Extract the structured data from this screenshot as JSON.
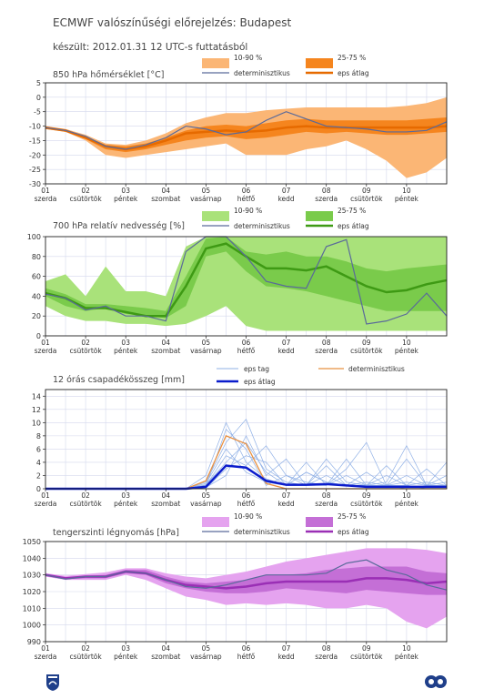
{
  "header": {
    "title": "ECMWF valószínűségi előrejelzés: Budapest",
    "subtitle": "készült: 2012.01.31 12 UTC-s futtatásból"
  },
  "x_axis": {
    "dates": [
      "01",
      "02",
      "03",
      "04",
      "05",
      "06",
      "07",
      "08",
      "09",
      "10"
    ],
    "days": [
      "szerda",
      "csütörtök",
      "péntek",
      "szombat",
      "vasárnap",
      "hétfő",
      "kedd",
      "szerda",
      "csütörtök",
      "péntek"
    ]
  },
  "colors": {
    "temp_light": "#fbb675",
    "temp_dark": "#f5851e",
    "temp_mean": "#e66a00",
    "hum_light": "#a9e27a",
    "hum_dark": "#7acb4b",
    "hum_mean": "#3e9a14",
    "pr_member": "#8fb0e6",
    "pr_mean": "#0a1ccc",
    "pr_det": "#e89040",
    "pres_light": "#e5a3ef",
    "pres_dark": "#c46fd6",
    "pres_mean": "#9a2fb5",
    "det": "#5a6a9a"
  },
  "chart_data": [
    {
      "id": "temp",
      "type": "area",
      "title": "850 hPa hőmérséklet [°C]",
      "ylim": [
        -30,
        5
      ],
      "yticks": [
        5,
        0,
        -5,
        -10,
        -15,
        -20,
        -25,
        -30
      ],
      "legend": {
        "band_outer": "10-90 %",
        "band_inner": "25-75 %",
        "det": "determinisztikus",
        "mean": "eps átlag"
      },
      "x": [
        0,
        0.5,
        1,
        1.5,
        2,
        2.5,
        3,
        3.5,
        4,
        4.5,
        5,
        5.5,
        6,
        6.5,
        7,
        7.5,
        8,
        8.5,
        9,
        9.5,
        10
      ],
      "p10": [
        -11,
        -12,
        -15,
        -20,
        -21,
        -20,
        -19,
        -18,
        -17,
        -16,
        -20,
        -20,
        -20,
        -18,
        -17,
        -15,
        -18,
        -22,
        -28,
        -26,
        -21
      ],
      "p25": [
        -11,
        -12,
        -14.5,
        -18,
        -19,
        -18,
        -16.5,
        -15,
        -14,
        -13.5,
        -14.5,
        -14,
        -13,
        -12,
        -12.5,
        -12,
        -12.5,
        -13,
        -13,
        -12.5,
        -12
      ],
      "p75": [
        -10.5,
        -11.5,
        -13.5,
        -16.5,
        -17,
        -16,
        -14,
        -11.5,
        -10,
        -9.5,
        -10,
        -9,
        -8,
        -7.5,
        -8,
        -8,
        -8,
        -8,
        -8,
        -7.5,
        -7
      ],
      "p90": [
        -10,
        -11,
        -13,
        -16,
        -16.5,
        -15,
        -12.5,
        -9,
        -7,
        -5.5,
        -5.5,
        -4.5,
        -4,
        -3.5,
        -3.5,
        -3.5,
        -3.5,
        -3.5,
        -3,
        -2,
        0
      ],
      "mean": [
        -10.5,
        -11.5,
        -14,
        -17,
        -18,
        -17,
        -15,
        -12.5,
        -12,
        -11.5,
        -12,
        -11.5,
        -10.5,
        -10,
        -10.5,
        -10.5,
        -10.5,
        -10.5,
        -10.5,
        -10.5,
        -10
      ],
      "det": [
        -10.5,
        -11.5,
        -13.5,
        -17,
        -18,
        -16.5,
        -14,
        -10,
        -11,
        -13,
        -12,
        -8,
        -5,
        -7.5,
        -10,
        -10.5,
        -11,
        -12,
        -12,
        -11.5,
        -8.5
      ]
    },
    {
      "id": "hum",
      "type": "area",
      "title": "700 hPa relatív nedvesség [%]",
      "ylim": [
        0,
        100
      ],
      "yticks": [
        100,
        80,
        60,
        40,
        20,
        0
      ],
      "legend": {
        "band_outer": "10-90 %",
        "band_inner": "25-75 %",
        "det": "determinisztikus",
        "mean": "eps átlag"
      },
      "x": [
        0,
        0.5,
        1,
        1.5,
        2,
        2.5,
        3,
        3.5,
        4,
        4.5,
        5,
        5.5,
        6,
        6.5,
        7,
        7.5,
        8,
        8.5,
        9,
        9.5,
        10
      ],
      "p10": [
        30,
        20,
        15,
        15,
        12,
        12,
        10,
        12,
        20,
        30,
        10,
        5,
        5,
        5,
        5,
        5,
        5,
        5,
        5,
        5,
        5
      ],
      "p25": [
        40,
        30,
        25,
        28,
        22,
        20,
        18,
        30,
        80,
        85,
        65,
        50,
        48,
        45,
        40,
        35,
        30,
        25,
        25,
        25,
        25
      ],
      "p75": [
        48,
        42,
        32,
        32,
        30,
        28,
        25,
        60,
        98,
        100,
        85,
        82,
        85,
        80,
        80,
        75,
        68,
        65,
        68,
        70,
        72
      ],
      "p90": [
        55,
        62,
        40,
        70,
        45,
        45,
        40,
        90,
        100,
        100,
        100,
        100,
        100,
        100,
        100,
        100,
        100,
        100,
        100,
        100,
        100
      ],
      "mean": [
        43,
        38,
        28,
        28,
        24,
        20,
        20,
        50,
        88,
        93,
        80,
        68,
        68,
        66,
        70,
        60,
        50,
        44,
        46,
        52,
        56
      ],
      "det": [
        42,
        38,
        26,
        30,
        20,
        20,
        15,
        85,
        100,
        100,
        80,
        55,
        50,
        48,
        90,
        97,
        12,
        15,
        22,
        43,
        20
      ]
    },
    {
      "id": "precip",
      "type": "line",
      "title": "12 órás csapadékösszeg [mm]",
      "ylim": [
        0,
        15
      ],
      "yticks": [
        14,
        12,
        10,
        8,
        6,
        4,
        2,
        0
      ],
      "legend": {
        "members": "eps tag",
        "mean": "eps átlag",
        "det": "determinisztikus"
      },
      "x": [
        0,
        0.5,
        1,
        1.5,
        2,
        2.5,
        3,
        3.5,
        4,
        4.5,
        5,
        5.5,
        6,
        6.5,
        7,
        7.5,
        8,
        8.5,
        9,
        9.5,
        10
      ],
      "mean": [
        0,
        0,
        0,
        0,
        0,
        0,
        0,
        0,
        0.3,
        3.5,
        3.2,
        1.2,
        0.6,
        0.6,
        0.7,
        0.5,
        0.3,
        0.3,
        0.3,
        0.3,
        0.3
      ],
      "det": [
        0,
        0,
        0,
        0,
        0,
        0,
        0,
        0,
        1.2,
        8.0,
        6.8,
        0.8,
        0,
        0,
        0,
        0,
        0,
        0,
        0,
        0,
        0
      ],
      "members": [
        [
          0,
          0,
          0,
          0,
          0,
          0,
          0,
          0,
          2.0,
          10.0,
          4.0,
          1.5,
          0.5,
          2.5,
          1.0,
          0.5,
          0.2,
          0.5,
          0,
          0,
          0
        ],
        [
          0,
          0,
          0,
          0,
          0,
          0,
          0,
          0,
          1.0,
          7.0,
          10.5,
          3.0,
          1.0,
          0.5,
          4.5,
          1.0,
          0.5,
          2.0,
          0.5,
          0,
          0
        ],
        [
          0,
          0,
          0,
          0,
          0,
          0,
          0,
          0,
          0.5,
          5.0,
          3.5,
          6.5,
          2.0,
          1.0,
          0.5,
          3.0,
          7.0,
          0.5,
          1.0,
          0.5,
          0.5
        ],
        [
          0,
          0,
          0,
          0,
          0,
          0,
          0,
          0,
          0.2,
          2.0,
          8.0,
          2.0,
          4.5,
          0.5,
          3.5,
          0.5,
          0.5,
          1.0,
          6.5,
          0.5,
          4.0
        ],
        [
          0,
          0,
          0,
          0,
          0,
          0,
          0,
          0,
          0.8,
          6.0,
          2.5,
          1.0,
          0.5,
          4.0,
          0.5,
          2.0,
          0.5,
          3.5,
          0.5,
          3.0,
          0.5
        ],
        [
          0,
          0,
          0,
          0,
          0,
          0,
          0,
          0,
          0.1,
          3.0,
          5.0,
          4.0,
          0.5,
          0.5,
          2.0,
          0.5,
          2.5,
          0.5,
          2.0,
          0.5,
          2.0
        ],
        [
          0,
          0,
          0,
          0,
          0,
          0,
          0,
          0,
          0.3,
          9.0,
          6.0,
          0.5,
          2.0,
          0.5,
          0.5,
          4.5,
          0.5,
          0.5,
          0.5,
          1.0,
          0.5
        ],
        [
          0,
          0,
          0,
          0,
          0,
          0,
          0,
          0,
          0.6,
          4.0,
          7.0,
          2.5,
          0.5,
          2.5,
          1.0,
          0.5,
          1.0,
          0.5,
          4.5,
          0.5,
          1.0
        ]
      ]
    },
    {
      "id": "pres",
      "type": "area",
      "title": "tengerszinti légnyomás [hPa]",
      "ylim": [
        990,
        1050
      ],
      "yticks": [
        1050,
        1040,
        1030,
        1020,
        1010,
        1000,
        990
      ],
      "legend": {
        "band_outer": "10-90 %",
        "band_inner": "25-75 %",
        "det": "determinisztikus",
        "mean": "eps átlag"
      },
      "x": [
        0,
        0.5,
        1,
        1.5,
        2,
        2.5,
        3,
        3.5,
        4,
        4.5,
        5,
        5.5,
        6,
        6.5,
        7,
        7.5,
        8,
        8.5,
        9,
        9.5,
        10
      ],
      "p10": [
        1029,
        1027,
        1027,
        1027,
        1030,
        1027,
        1022,
        1017,
        1015,
        1012,
        1013,
        1012,
        1013,
        1012,
        1010,
        1010,
        1012,
        1010,
        1002,
        998,
        1005
      ],
      "p25": [
        1029.5,
        1027.5,
        1028,
        1028,
        1031,
        1030,
        1025,
        1022,
        1020,
        1019,
        1019,
        1020,
        1022,
        1021,
        1020,
        1019,
        1021,
        1020,
        1019,
        1018,
        1018
      ],
      "p75": [
        1030.5,
        1028.5,
        1029.5,
        1030,
        1033,
        1033,
        1029,
        1026,
        1025,
        1026,
        1027,
        1030,
        1030,
        1031,
        1033,
        1034,
        1035,
        1035,
        1035,
        1032,
        1031
      ],
      "p90": [
        1031,
        1029.5,
        1030.5,
        1031.5,
        1034,
        1034,
        1031,
        1029,
        1028,
        1030,
        1032,
        1035,
        1038,
        1040,
        1042,
        1044,
        1046,
        1046,
        1046,
        1045,
        1043
      ],
      "mean": [
        1030,
        1028,
        1029,
        1029,
        1032,
        1031,
        1027,
        1024,
        1023,
        1022,
        1023,
        1025,
        1026,
        1026,
        1026,
        1026,
        1028,
        1028,
        1027,
        1025,
        1026
      ],
      "det": [
        1030,
        1027.5,
        1029,
        1029,
        1032,
        1031,
        1027,
        1023,
        1022,
        1024,
        1027,
        1030,
        1030,
        1030,
        1031,
        1037,
        1039,
        1033,
        1030,
        1024,
        1021
      ]
    }
  ],
  "logos": {
    "left": "OMSZ",
    "right": "ECMWF"
  }
}
